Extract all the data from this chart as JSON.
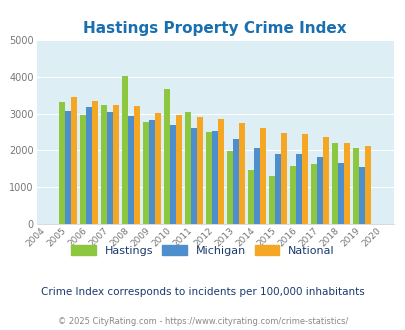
{
  "title": "Hastings Property Crime Index",
  "years": [
    2004,
    2005,
    2006,
    2007,
    2008,
    2009,
    2010,
    2011,
    2012,
    2013,
    2014,
    2015,
    2016,
    2017,
    2018,
    2019,
    2020
  ],
  "hastings": [
    null,
    3300,
    2950,
    3220,
    4020,
    2760,
    3650,
    3050,
    2500,
    1990,
    1480,
    1320,
    1570,
    1640,
    2190,
    2080,
    null
  ],
  "michigan": [
    null,
    3080,
    3180,
    3040,
    2920,
    2820,
    2680,
    2600,
    2540,
    2310,
    2060,
    1910,
    1910,
    1820,
    1650,
    1560,
    null
  ],
  "national": [
    null,
    3450,
    3340,
    3230,
    3200,
    3020,
    2960,
    2910,
    2840,
    2740,
    2600,
    2480,
    2450,
    2360,
    2210,
    2130,
    null
  ],
  "hastings_color": "#8dc63f",
  "michigan_color": "#4d8fcc",
  "national_color": "#f5a623",
  "bg_color": "#ddeef5",
  "ylim": [
    0,
    5000
  ],
  "yticks": [
    0,
    1000,
    2000,
    3000,
    4000,
    5000
  ],
  "subtitle": "Crime Index corresponds to incidents per 100,000 inhabitants",
  "footer": "© 2025 CityRating.com - https://www.cityrating.com/crime-statistics/",
  "title_color": "#1a6faf",
  "subtitle_color": "#1a3a6f",
  "footer_color": "#888888",
  "legend_label_color": "#1a3a6f",
  "legend_labels": [
    "Hastings",
    "Michigan",
    "National"
  ]
}
